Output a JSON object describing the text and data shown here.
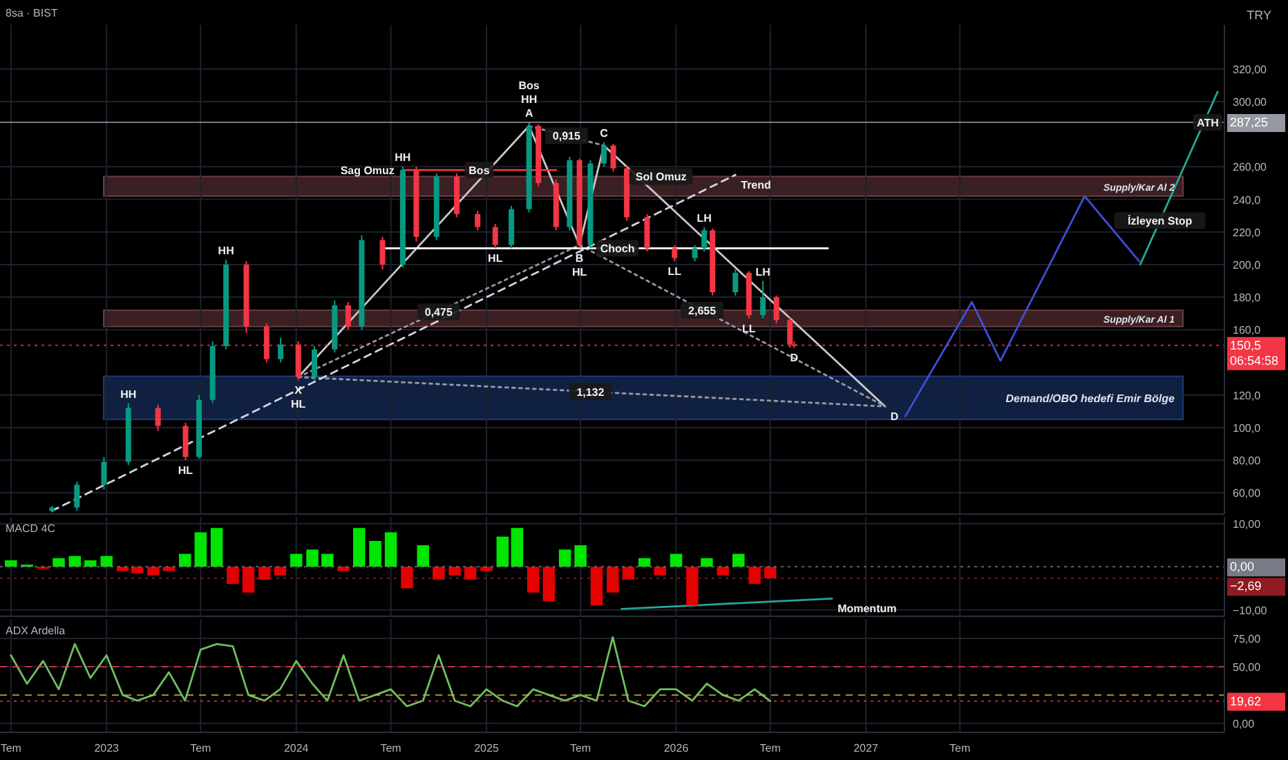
{
  "chart_data": [
    {
      "type": "candlestick",
      "title": "8sa · BIST",
      "xlim": [
        "2022-06-10",
        "2028-11-21"
      ],
      "ylim": [
        47,
        347
      ],
      "tick_labels": "y",
      "grid": true,
      "xticks": [
        "2022-07-01",
        "2023-01-01",
        "2023-07-01",
        "2024-01-01",
        "2024-07-01",
        "2025-01-01",
        "2025-07-01",
        "2026-01-01",
        "2026-07-01",
        "2027-01-01",
        "2027-07-01"
      ],
      "yticks": [
        {
          "value": 60,
          "label": "60,00"
        },
        {
          "value": 80,
          "label": "80,00"
        },
        {
          "value": 100,
          "label": "100,0"
        },
        {
          "value": 120,
          "label": "120,0"
        },
        {
          "value": 160,
          "label": "160,0"
        },
        {
          "value": 180,
          "label": "180,0"
        },
        {
          "value": 200,
          "label": "200,0"
        },
        {
          "value": 220,
          "label": "220,0"
        },
        {
          "value": 240,
          "label": "240,0"
        },
        {
          "value": 260,
          "label": "260,00"
        },
        {
          "value": 300,
          "label": "300,00"
        },
        {
          "value": 320,
          "label": "320,00"
        }
      ],
      "x": [
        "2022-09-18",
        "2022-11-05",
        "2022-12-27",
        "2023-02-12",
        "2023-04-10",
        "2023-06-02",
        "2023-06-28",
        "2023-07-24",
        "2023-08-19",
        "2023-09-27",
        "2023-11-05",
        "2023-12-02",
        "2024-01-05",
        "2024-02-05",
        "2024-03-15",
        "2024-04-10",
        "2024-05-06",
        "2024-06-15",
        "2024-07-24",
        "2024-08-19",
        "2024-09-27",
        "2024-11-05",
        "2024-12-15",
        "2025-01-18",
        "2025-02-18",
        "2025-03-24",
        "2025-04-11",
        "2025-05-15",
        "2025-06-10",
        "2025-06-29",
        "2025-07-20",
        "2025-08-15",
        "2025-09-02",
        "2025-09-28",
        "2025-11-06",
        "2025-12-29",
        "2026-02-06",
        "2026-02-24",
        "2026-03-12",
        "2026-04-25",
        "2026-05-21",
        "2026-06-17",
        "2026-07-13",
        "2026-08-08",
        "2026-08-16"
      ],
      "ohlc": [
        [
          49,
          52,
          48,
          51
        ],
        [
          51,
          67,
          49,
          65
        ],
        [
          65,
          82,
          62,
          79
        ],
        [
          79,
          115,
          77,
          112
        ],
        [
          112,
          114,
          98,
          101
        ],
        [
          101,
          103,
          80,
          82
        ],
        [
          82,
          120,
          81,
          117
        ],
        [
          117,
          153,
          115,
          150
        ],
        [
          150,
          203,
          148,
          200
        ],
        [
          200,
          202,
          158,
          162
        ],
        [
          162,
          164,
          140,
          142
        ],
        [
          142,
          155,
          140,
          151
        ],
        [
          151,
          153,
          129,
          131
        ],
        [
          131,
          150,
          129,
          148
        ],
        [
          148,
          178,
          146,
          175
        ],
        [
          175,
          177,
          160,
          162
        ],
        [
          162,
          218,
          160,
          215
        ],
        [
          215,
          217,
          197,
          200
        ],
        [
          200,
          260,
          198,
          258
        ],
        [
          258,
          260,
          214,
          217
        ],
        [
          217,
          256,
          215,
          254
        ],
        [
          254,
          256,
          229,
          231
        ],
        [
          231,
          233,
          221,
          223
        ],
        [
          223,
          225,
          210,
          212
        ],
        [
          212,
          236,
          210,
          234
        ],
        [
          234,
          287.25,
          232,
          285
        ],
        [
          285,
          286,
          248,
          250
        ],
        [
          250,
          252,
          221,
          223
        ],
        [
          223,
          266,
          221,
          264
        ],
        [
          264,
          265,
          210,
          212
        ],
        [
          212,
          264,
          210,
          262
        ],
        [
          262,
          275,
          260,
          273
        ],
        [
          273,
          274,
          257,
          259
        ],
        [
          259,
          261,
          227,
          229
        ],
        [
          229,
          231,
          208,
          210
        ],
        [
          210,
          212,
          202,
          204
        ],
        [
          204,
          212,
          202,
          210
        ],
        [
          210,
          223,
          208,
          221
        ],
        [
          221,
          222,
          181,
          183
        ],
        [
          183,
          197,
          181,
          195
        ],
        [
          195,
          196,
          167,
          169
        ],
        [
          169,
          190,
          167,
          180
        ],
        [
          180,
          181,
          164,
          166
        ],
        [
          166,
          168,
          149,
          151
        ],
        [
          151,
          153,
          149,
          150.5
        ]
      ],
      "series": [
        {
          "type": "line",
          "x": [
            "2024-01-05",
            "2025-03-24",
            "2025-06-29",
            "2025-08-15",
            "2027-02-07"
          ],
          "values": [
            131,
            285,
            212,
            273,
            113
          ],
          "color": "#c8c8c8"
        },
        {
          "type": "line",
          "x": [
            "2024-01-05",
            "2025-06-29"
          ],
          "values": [
            131,
            212
          ],
          "color": "#9598a1",
          "line_style": "dotted"
        },
        {
          "type": "line",
          "x": [
            "2025-03-24",
            "2025-08-15"
          ],
          "values": [
            285,
            273
          ],
          "color": "#9598a1",
          "line_style": "dotted"
        },
        {
          "type": "line",
          "x": [
            "2025-06-29",
            "2027-02-07"
          ],
          "values": [
            212,
            113
          ],
          "color": "#9598a1",
          "line_style": "dotted"
        },
        {
          "type": "line",
          "x": [
            "2024-01-05",
            "2027-02-07"
          ],
          "values": [
            131,
            113
          ],
          "color": "#9598a1",
          "line_style": "dotted"
        },
        {
          "type": "line",
          "x": [
            "2022-09-18",
            "2026-04-25"
          ],
          "values": [
            49,
            255
          ],
          "color": "#d1d4dc",
          "line_style": "dashed"
        },
        {
          "type": "line",
          "x": [
            "2024-07-24",
            "2025-05-15"
          ],
          "values": [
            258,
            258
          ],
          "color": "#f23645"
        },
        {
          "type": "line",
          "x": [
            "2024-06-15",
            "2026-10-20"
          ],
          "values": [
            210,
            210
          ],
          "color": "#ffffff"
        },
        {
          "type": "line",
          "x": [
            "2027-03-18",
            "2027-07-24",
            "2027-09-17",
            "2028-02-26",
            "2028-06-10"
          ],
          "values": [
            107,
            177,
            141,
            242,
            202
          ],
          "color": "#3f4fd8"
        },
        {
          "type": "line",
          "x": [
            "2028-06-12",
            "2028-11-08"
          ],
          "values": [
            200,
            306
          ],
          "color": "#22ab94"
        }
      ],
      "ref_lines": [
        {
          "axis": "y",
          "value": 287.25,
          "label": "287,25",
          "color": "#9598a1",
          "line_style": "solid"
        },
        {
          "axis": "y",
          "value": 150.5,
          "label": "150,5\n06:54:58",
          "color": "#f23645",
          "line_style": "dotted"
        }
      ],
      "bands": [
        {
          "axis": "y",
          "from": 105,
          "to": 131.5,
          "label": "Demand/OBO hedefi Emir Bölge",
          "color": "#1e3a78"
        },
        {
          "axis": "y",
          "from": 162,
          "to": 172,
          "label": "Supply/Kar Al 1",
          "color": "#6b3a3f"
        },
        {
          "axis": "y",
          "from": 242,
          "to": 254,
          "label": "Supply/Kar  Al 2",
          "color": "#6b3a3f"
        }
      ],
      "annotations": [
        "TRY",
        {
          "text": "HH",
          "x": "2023-02-12",
          "y": 115
        },
        {
          "text": "HL",
          "x": "2023-06-02",
          "y": 80
        },
        {
          "text": "HH",
          "x": "2023-08-19",
          "y": 203
        },
        {
          "text": "X",
          "x": "2024-01-05",
          "y": 129
        },
        {
          "text": "HL",
          "x": "2024-01-05",
          "y": 129
        },
        {
          "text": "HH",
          "x": "2024-07-24",
          "y": 260
        },
        {
          "text": "Sag Omuz",
          "x": "2024-07-24",
          "y": 258
        },
        {
          "text": "Bos",
          "x": "2024-12-18",
          "y": 258
        },
        {
          "text": "A",
          "x": "2025-03-24",
          "y": 287.25
        },
        {
          "text": "HH",
          "x": "2025-03-24",
          "y": 287.25
        },
        {
          "text": "Bos",
          "x": "2025-03-24",
          "y": 287.25
        },
        {
          "text": "0,915",
          "x": "2025-06-04",
          "y": 279
        },
        {
          "text": "C",
          "x": "2025-08-15",
          "y": 275
        },
        {
          "text": "Sol Omuz",
          "x": "2025-12-03",
          "y": 254
        },
        {
          "text": "Trend",
          "x": "2026-04-25",
          "y": 255
        },
        {
          "text": "HL",
          "x": "2025-01-18",
          "y": 210
        },
        {
          "text": "B",
          "x": "2025-06-29",
          "y": 210
        },
        {
          "text": "HL",
          "x": "2025-06-29",
          "y": 210
        },
        {
          "text": "Choch",
          "x": "2025-09-10",
          "y": 210
        },
        {
          "text": "LH",
          "x": "2026-02-24",
          "y": 223
        },
        {
          "text": "LL",
          "x": "2025-12-29",
          "y": 202
        },
        {
          "text": "LH",
          "x": "2026-06-17",
          "y": 190
        },
        {
          "text": "LL",
          "x": "2026-05-21",
          "y": 167
        },
        {
          "text": "2,655",
          "x": "2026-02-20",
          "y": 172
        },
        {
          "text": "D",
          "x": "2026-08-16",
          "y": 149
        },
        {
          "text": "0,475",
          "x": "2024-10-01",
          "y": 171
        },
        {
          "text": "1,132",
          "x": "2025-07-20",
          "y": 122
        },
        {
          "text": "D",
          "x": "2027-02-07",
          "y": 113
        },
        {
          "text": "ATH",
          "x": "2028-10-20",
          "y": 287.25
        },
        {
          "text": "İzleyen Stop",
          "x": "2028-07-20",
          "y": 227
        }
      ]
    },
    {
      "type": "bar",
      "title": "MACD 4C",
      "xlim": [
        "2022-06-10",
        "2028-11-21"
      ],
      "ylim": [
        -11.5,
        11.6
      ],
      "tick_labels": "y",
      "grid": true,
      "xticks": [
        "2022-07-01",
        "2023-01-01",
        "2023-07-01",
        "2024-01-01",
        "2024-07-01",
        "2025-01-01",
        "2025-07-01",
        "2026-01-01",
        "2026-07-01",
        "2027-01-01",
        "2027-07-01"
      ],
      "yticks": [
        {
          "value": 10,
          "label": "10,00"
        },
        {
          "value": -10,
          "label": "−10,00"
        }
      ],
      "x": [
        "2022-07",
        "2022-08",
        "2022-09",
        "2022-10",
        "2022-11",
        "2022-12",
        "2023-01",
        "2023-02",
        "2023-03",
        "2023-04",
        "2023-05",
        "2023-06",
        "2023-07",
        "2023-08",
        "2023-09",
        "2023-10",
        "2023-11",
        "2023-12",
        "2024-01",
        "2024-02",
        "2024-03",
        "2024-04",
        "2024-05",
        "2024-06",
        "2024-07",
        "2024-08",
        "2024-09",
        "2024-10",
        "2024-11",
        "2024-12",
        "2025-01",
        "2025-02",
        "2025-03",
        "2025-04",
        "2025-05",
        "2025-06",
        "2025-07",
        "2025-08",
        "2025-09",
        "2025-10",
        "2025-11",
        "2025-12",
        "2026-01",
        "2026-02",
        "2026-03",
        "2026-04",
        "2026-05",
        "2026-06",
        "2026-07"
      ],
      "values": [
        1.5,
        0.5,
        -0.5,
        2,
        2.5,
        1.5,
        2.5,
        -1,
        -1.5,
        -2,
        -1,
        3,
        8,
        9,
        -4,
        -6,
        -3,
        -2,
        3,
        4,
        3,
        -1,
        9,
        6,
        8,
        -5,
        5,
        -3,
        -2,
        -3,
        -1,
        7,
        9,
        -6,
        -8,
        4,
        5,
        -9,
        -6,
        -3,
        2,
        -2,
        3,
        -9,
        2,
        -2,
        3,
        -4,
        -2.69
      ],
      "colors": [
        "#00e600",
        "#00e600",
        "#e60000",
        "#00e600",
        "#00e600",
        "#00e600",
        "#00e600",
        "#e60000",
        "#e60000",
        "#e60000",
        "#e60000",
        "#00e600",
        "#00e600",
        "#00e600",
        "#e60000",
        "#e60000",
        "#e60000",
        "#e60000",
        "#00e600",
        "#00e600",
        "#00e600",
        "#e60000",
        "#00e600",
        "#00e600",
        "#00e600",
        "#e60000",
        "#00e600",
        "#e60000",
        "#e60000",
        "#e60000",
        "#e60000",
        "#00e600",
        "#00e600",
        "#e60000",
        "#e60000",
        "#00e600",
        "#00e600",
        "#e60000",
        "#e60000",
        "#e60000",
        "#00e600",
        "#e60000",
        "#00e600",
        "#e60000",
        "#00e600",
        "#e60000",
        "#00e600",
        "#e60000",
        "#e60000"
      ],
      "series": [
        {
          "type": "line",
          "x": [
            "2025-09-18",
            "2026-10-28"
          ],
          "values": [
            -9.8,
            -7.4
          ],
          "color": "#26a69a"
        }
      ],
      "ref_lines": [
        {
          "axis": "y",
          "value": 0,
          "label": "0,00",
          "color": "#787b86",
          "line_style": "dotted"
        },
        {
          "axis": "y",
          "value": -2.69,
          "label": "−2,69",
          "color": "#8e1c22",
          "line_style": "dotted"
        }
      ],
      "annotations": [
        {
          "text": "Momentum",
          "x": "2026-10-28",
          "y": -7.4
        }
      ]
    },
    {
      "type": "line",
      "title": "ADX Ardella",
      "xlim": [
        "2022-06-10",
        "2028-11-21"
      ],
      "ylim": [
        -8,
        92
      ],
      "grid": true,
      "xticks": [
        {
          "value": "2022-07-01",
          "label": "Tem"
        },
        {
          "value": "2023-01-01",
          "label": "2023"
        },
        {
          "value": "2023-07-01",
          "label": "Tem"
        },
        {
          "value": "2024-01-01",
          "label": "2024"
        },
        {
          "value": "2024-07-01",
          "label": "Tem"
        },
        {
          "value": "2025-01-01",
          "label": "2025"
        },
        {
          "value": "2025-07-01",
          "label": "Tem"
        },
        {
          "value": "2026-01-01",
          "label": "2026"
        },
        {
          "value": "2026-07-01",
          "label": "Tem"
        },
        {
          "value": "2027-01-01",
          "label": "2027"
        },
        {
          "value": "2027-07-01",
          "label": "Tem"
        }
      ],
      "yticks": [
        {
          "value": 0,
          "label": "0,00"
        },
        {
          "value": 50,
          "label": "50,00"
        },
        {
          "value": 75,
          "label": "75,00"
        }
      ],
      "series": [
        {
          "x": [
            "2022-07",
            "2022-08",
            "2022-09",
            "2022-10",
            "2022-11",
            "2022-12",
            "2023-01",
            "2023-02",
            "2023-03",
            "2023-04",
            "2023-05",
            "2023-06",
            "2023-07",
            "2023-08",
            "2023-09",
            "2023-10",
            "2023-11",
            "2023-12",
            "2024-01",
            "2024-02",
            "2024-03",
            "2024-04",
            "2024-05",
            "2024-06",
            "2024-07",
            "2024-08",
            "2024-09",
            "2024-10",
            "2024-11",
            "2024-12",
            "2025-01",
            "2025-02",
            "2025-03",
            "2025-04",
            "2025-05",
            "2025-06",
            "2025-07",
            "2025-08",
            "2025-09",
            "2025-10",
            "2025-11",
            "2025-12",
            "2026-01",
            "2026-02",
            "2026-03",
            "2026-04",
            "2026-05",
            "2026-06",
            "2026-07"
          ],
          "values": [
            60,
            35,
            55,
            30,
            70,
            40,
            60,
            25,
            20,
            25,
            45,
            20,
            65,
            70,
            68,
            25,
            20,
            30,
            55,
            35,
            20,
            60,
            20,
            25,
            30,
            15,
            20,
            60,
            20,
            15,
            30,
            20,
            15,
            30,
            25,
            20,
            25,
            20,
            76,
            20,
            15,
            30,
            30,
            20,
            35,
            25,
            20,
            30,
            19.62
          ],
          "color": "#6fbf5f"
        }
      ],
      "ref_lines": [
        {
          "axis": "y",
          "value": 50,
          "color": "#f23645",
          "line_style": "dashed"
        },
        {
          "axis": "y",
          "value": 25,
          "color": "#c9b13b",
          "line_style": "dashed"
        },
        {
          "axis": "y",
          "value": 19.62,
          "label": "19,62",
          "color": "#f23645",
          "line_style": "dotted"
        }
      ]
    }
  ]
}
